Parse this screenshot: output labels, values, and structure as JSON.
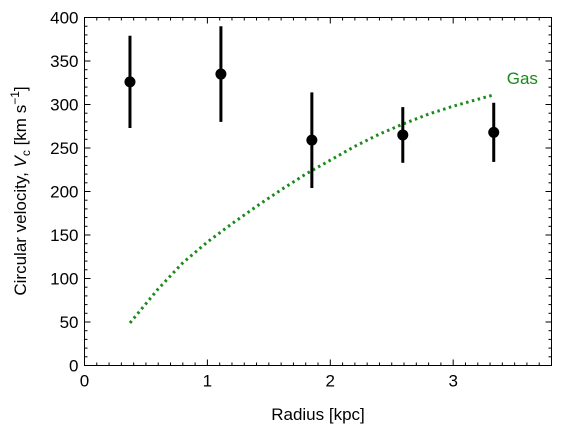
{
  "chart_data": {
    "type": "scatter",
    "title": "",
    "xlabel": "Radius [kpc]",
    "ylabel_prefix": "Circular velocity, ",
    "ylabel_var": "V",
    "ylabel_var_sub": "c",
    "ylabel_unit_open": " [km s",
    "ylabel_unit_sup": "−1",
    "ylabel_unit_close": "]",
    "xlim": [
      0,
      3.8
    ],
    "ylim": [
      0,
      400
    ],
    "xticks": [
      0,
      1,
      2,
      3
    ],
    "yticks": [
      0,
      50,
      100,
      150,
      200,
      250,
      300,
      350,
      400
    ],
    "x_minor_step": 0.1,
    "y_minor_step": 10,
    "grid": false,
    "series": [
      {
        "kind": "errorbar",
        "color": "#000000",
        "points": [
          {
            "x": 0.37,
            "y": 326,
            "yerr_low": 53,
            "yerr_high": 53
          },
          {
            "x": 1.11,
            "y": 335,
            "yerr_low": 55,
            "yerr_high": 55
          },
          {
            "x": 1.85,
            "y": 259,
            "yerr_low": 55,
            "yerr_high": 55
          },
          {
            "x": 2.59,
            "y": 265,
            "yerr_low": 32,
            "yerr_high": 32
          },
          {
            "x": 3.33,
            "y": 268,
            "yerr_low": 34,
            "yerr_high": 34
          }
        ]
      },
      {
        "kind": "line",
        "name": "Gas",
        "color": "#1a8a1a",
        "style": "dotted",
        "x": [
          0.37,
          0.6,
          0.8,
          1.0,
          1.2,
          1.4,
          1.6,
          1.8,
          2.0,
          2.2,
          2.4,
          2.6,
          2.8,
          3.0,
          3.2,
          3.33
        ],
        "y": [
          49,
          88,
          118,
          142,
          163,
          183,
          202,
          220,
          236,
          252,
          266,
          278,
          289,
          298,
          306,
          311
        ]
      }
    ]
  }
}
